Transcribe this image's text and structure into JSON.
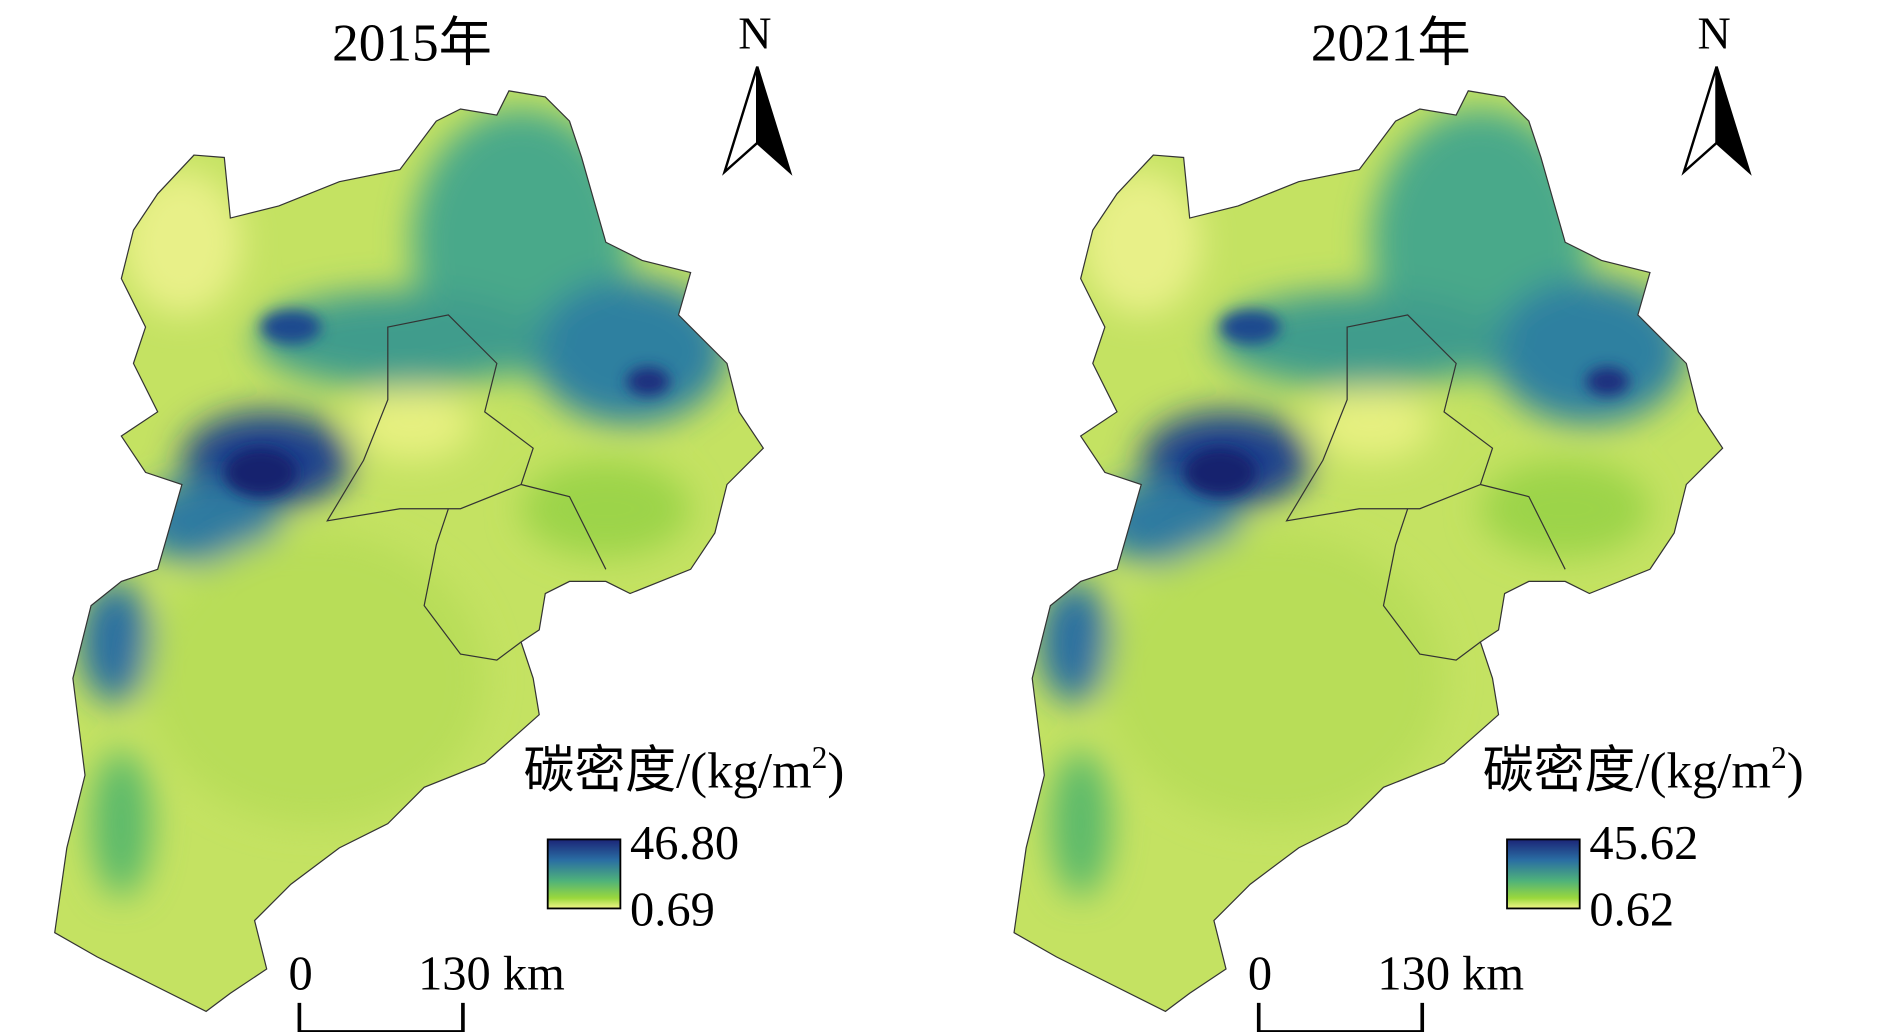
{
  "panels": [
    {
      "title": "2015年",
      "north": "N",
      "legend": {
        "title_prefix": "碳密度/(kg/m",
        "title_sup": "2",
        "title_suffix": ")",
        "max": "46.80",
        "min": "0.69"
      },
      "scale": {
        "start": "0",
        "end": "130 km"
      }
    },
    {
      "title": "2021年",
      "north": "N",
      "legend": {
        "title_prefix": "碳密度/(kg/m",
        "title_sup": "2",
        "title_suffix": ")",
        "max": "45.62",
        "min": "0.62"
      },
      "scale": {
        "start": "0",
        "end": "130 km"
      }
    }
  ]
}
